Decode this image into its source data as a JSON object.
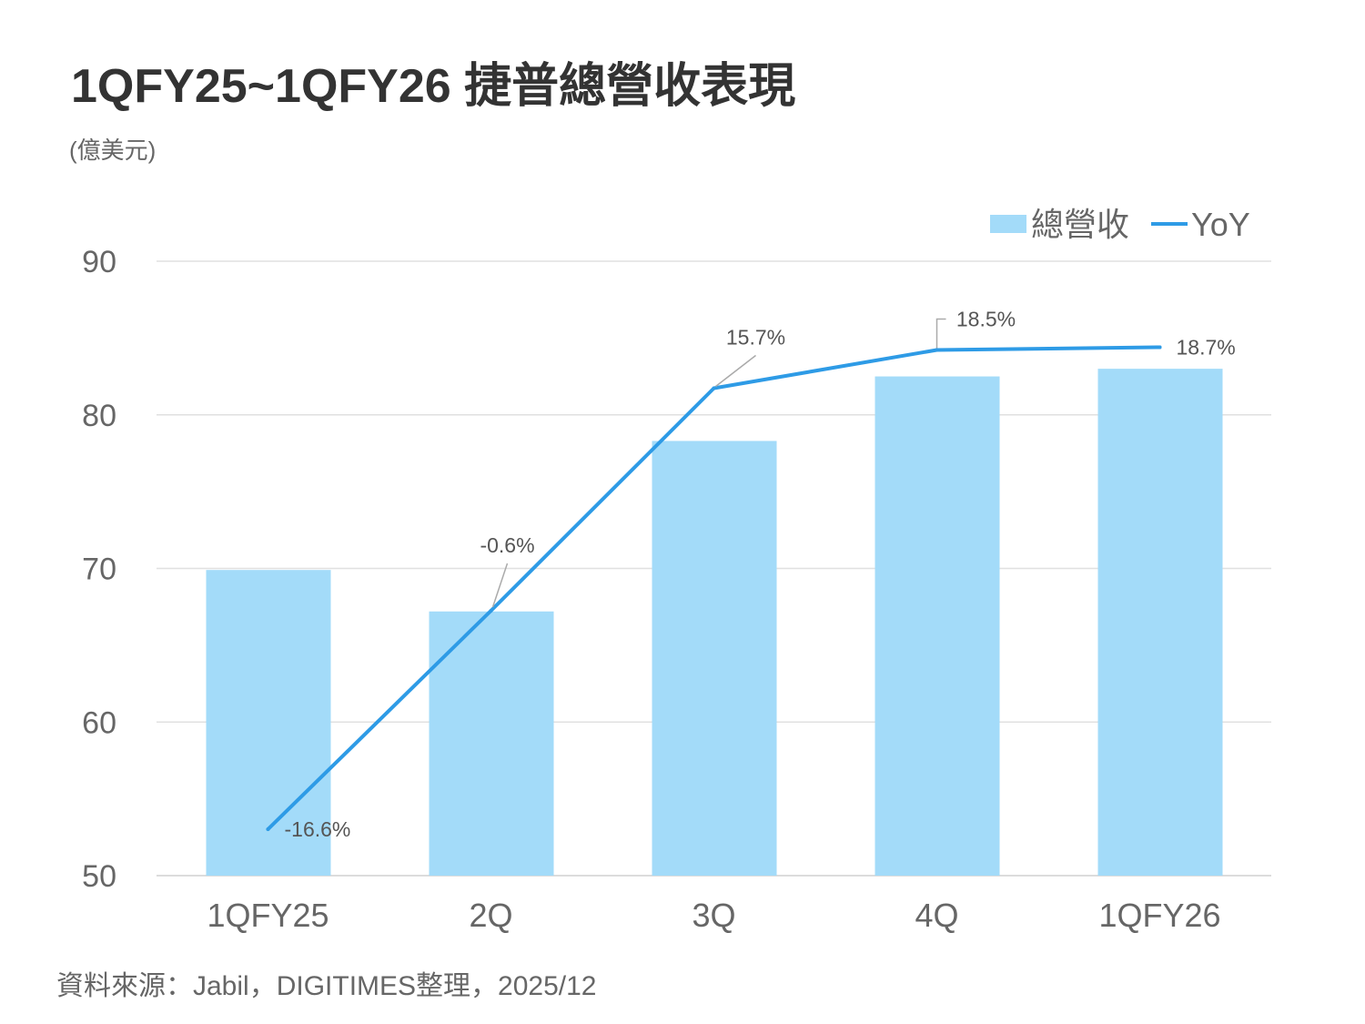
{
  "chart_data": {
    "type": "bar",
    "title": "1QFY25~1QFY26 捷普總營收表現",
    "unit_label": "(億美元)",
    "source": "資料來源：Jabil，DIGITIMES整理，2025/12",
    "categories": [
      "1QFY25",
      "2Q",
      "3Q",
      "4Q",
      "1QFY26"
    ],
    "series": [
      {
        "name": "總營收",
        "type": "bar",
        "axis": "primary",
        "values": [
          69.9,
          67.2,
          78.3,
          82.5,
          83.0
        ],
        "color": "#A3DBF9"
      },
      {
        "name": "YoY",
        "type": "line",
        "axis": "secondary",
        "values": [
          -16.6,
          -0.6,
          15.7,
          18.5,
          18.7
        ],
        "labels": [
          "-16.6%",
          "-0.6%",
          "15.7%",
          "18.5%",
          "18.7%"
        ],
        "color": "#2E9BE6"
      }
    ],
    "ylim": [
      50,
      90
    ],
    "yticks": [
      "50",
      "60",
      "70",
      "80",
      "90"
    ],
    "y2lim": [
      -20,
      25
    ],
    "y2_visible": false,
    "grid": true,
    "legend": "top-right"
  }
}
